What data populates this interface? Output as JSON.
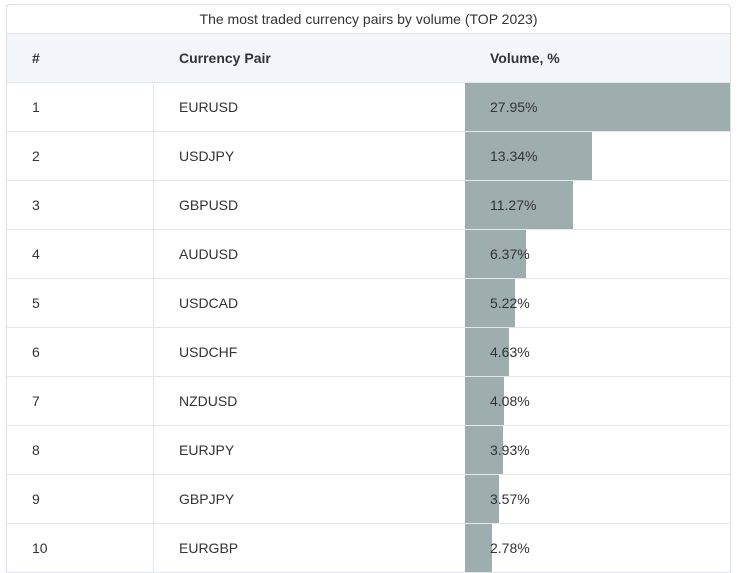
{
  "table": {
    "caption": "The most traded currency pairs by volume (TOP 2023)",
    "columns": [
      "#",
      "Currency Pair",
      "Volume, %"
    ]
  },
  "chart_data": {
    "type": "table",
    "title": "The most traded currency pairs by volume (TOP 2023)",
    "columns": [
      "#",
      "Currency Pair",
      "Volume, %"
    ],
    "rows": [
      {
        "rank": "1",
        "pair": "EURUSD",
        "volume": 27.95,
        "volume_label": "27.95%"
      },
      {
        "rank": "2",
        "pair": "USDJPY",
        "volume": 13.34,
        "volume_label": "13.34%"
      },
      {
        "rank": "3",
        "pair": "GBPUSD",
        "volume": 11.27,
        "volume_label": "11.27%"
      },
      {
        "rank": "4",
        "pair": "AUDUSD",
        "volume": 6.37,
        "volume_label": "6.37%"
      },
      {
        "rank": "5",
        "pair": "USDCAD",
        "volume": 5.22,
        "volume_label": "5.22%"
      },
      {
        "rank": "6",
        "pair": "USDCHF",
        "volume": 4.63,
        "volume_label": "4.63%"
      },
      {
        "rank": "7",
        "pair": "NZDUSD",
        "volume": 4.08,
        "volume_label": "4.08%"
      },
      {
        "rank": "8",
        "pair": "EURJPY",
        "volume": 3.93,
        "volume_label": "3.93%"
      },
      {
        "rank": "9",
        "pair": "GBPJPY",
        "volume": 3.57,
        "volume_label": "3.57%"
      },
      {
        "rank": "10",
        "pair": "EURGBP",
        "volume": 2.78,
        "volume_label": "2.78%"
      }
    ],
    "bar_color": "#9eaeae"
  }
}
